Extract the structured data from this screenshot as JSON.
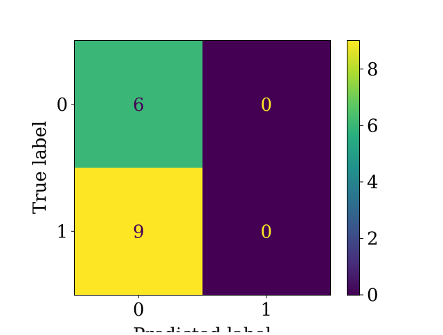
{
  "chart_data": {
    "type": "heatmap",
    "title": "",
    "xlabel": "Predicted label",
    "ylabel": "True label",
    "x_categories": [
      "0",
      "1"
    ],
    "y_categories": [
      "0",
      "1"
    ],
    "matrix": [
      [
        6,
        0
      ],
      [
        9,
        0
      ]
    ],
    "colormap": "viridis",
    "colorbar": {
      "range": [
        0,
        9
      ],
      "ticks": [
        0,
        2,
        4,
        6,
        8
      ]
    },
    "cell_colors": {
      "low": "#440154",
      "mid_6": "#3bb97b",
      "high": "#fde725"
    },
    "text_colors": {
      "on_light": "#440154",
      "on_dark": "#fde725"
    },
    "grid": false
  }
}
